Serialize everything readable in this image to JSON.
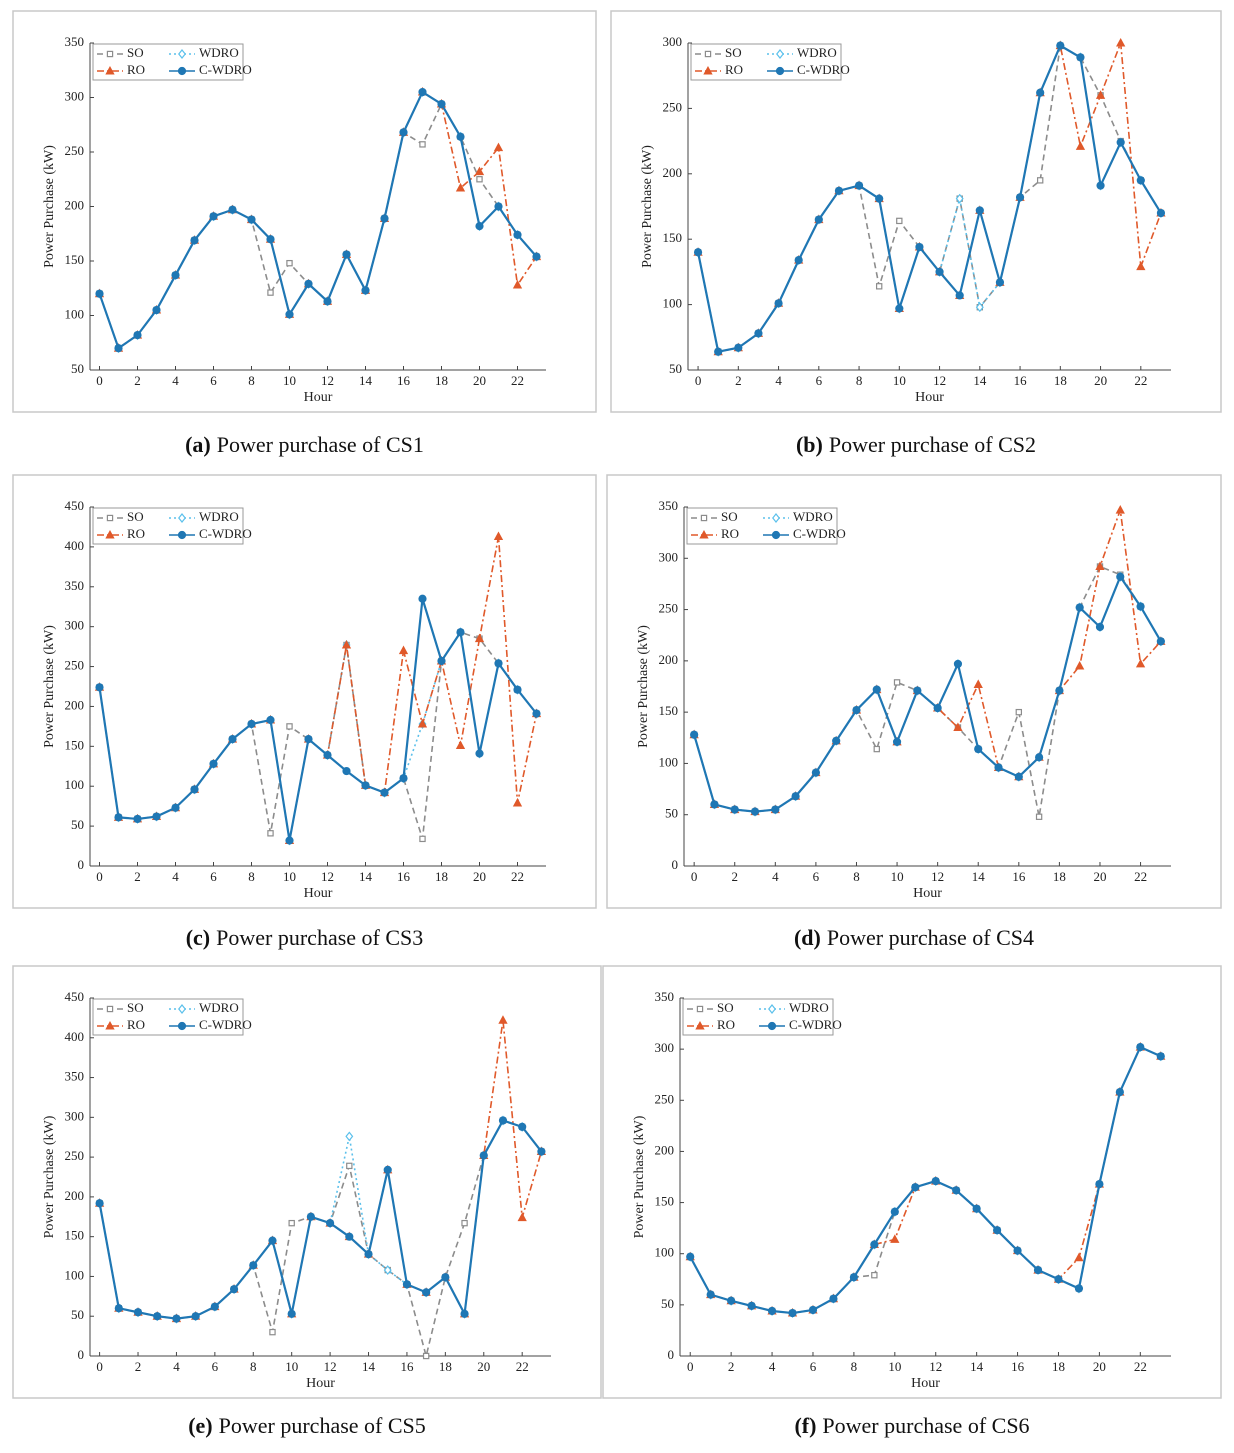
{
  "chart_data": [
    {
      "type": "line",
      "caption_label": "(a)",
      "caption": "Power purchase of CS1",
      "x_label": "Hour",
      "y_label": "Power Purchase (kW)",
      "x": [
        0,
        1,
        2,
        3,
        4,
        5,
        6,
        7,
        8,
        9,
        10,
        11,
        12,
        13,
        14,
        15,
        16,
        17,
        18,
        19,
        20,
        21,
        22,
        23
      ],
      "xlim": [
        -0.5,
        23.5
      ],
      "xticks": [
        0,
        2,
        4,
        6,
        8,
        10,
        12,
        14,
        16,
        18,
        20,
        22
      ],
      "ylim": [
        50,
        350
      ],
      "yticks": [
        50,
        100,
        150,
        200,
        250,
        300,
        350
      ],
      "series": [
        {
          "name": "SO",
          "color": "#8c8c8c",
          "line_style": "dashed",
          "marker": "square",
          "values": [
            120,
            70,
            82,
            105,
            137,
            169,
            191,
            197,
            188,
            121,
            148,
            129,
            113,
            156,
            123,
            189,
            268,
            257,
            294,
            264,
            225,
            200,
            174,
            154
          ]
        },
        {
          "name": "WDRO",
          "color": "#5bc0eb",
          "line_style": "dotted",
          "marker": "diamond",
          "values": [
            120,
            70,
            82,
            105,
            137,
            169,
            191,
            197,
            188,
            170,
            101,
            129,
            113,
            156,
            123,
            189,
            268,
            305,
            294,
            264,
            182,
            200,
            174,
            154
          ]
        },
        {
          "name": "RO",
          "color": "#e0592a",
          "line_style": "dashdot",
          "marker": "triangle",
          "values": [
            120,
            70,
            82,
            105,
            137,
            169,
            191,
            197,
            188,
            170,
            101,
            129,
            113,
            156,
            123,
            189,
            268,
            305,
            294,
            217,
            232,
            254,
            128,
            154
          ]
        },
        {
          "name": "C-WDRO",
          "color": "#1f77b4",
          "line_style": "solid",
          "marker": "circle",
          "values": [
            120,
            70,
            82,
            105,
            137,
            169,
            191,
            197,
            188,
            170,
            101,
            129,
            113,
            156,
            123,
            189,
            268,
            305,
            294,
            264,
            182,
            200,
            174,
            154
          ]
        }
      ]
    },
    {
      "type": "line",
      "caption_label": "(b)",
      "caption": "Power purchase of CS2",
      "x_label": "Hour",
      "y_label": "Power Purchase (kW)",
      "x": [
        0,
        1,
        2,
        3,
        4,
        5,
        6,
        7,
        8,
        9,
        10,
        11,
        12,
        13,
        14,
        15,
        16,
        17,
        18,
        19,
        20,
        21,
        22,
        23
      ],
      "xlim": [
        -0.5,
        23.5
      ],
      "xticks": [
        0,
        2,
        4,
        6,
        8,
        10,
        12,
        14,
        16,
        18,
        20,
        22
      ],
      "ylim": [
        50,
        300
      ],
      "yticks": [
        50,
        100,
        150,
        200,
        250,
        300
      ],
      "series": [
        {
          "name": "SO",
          "color": "#8c8c8c",
          "line_style": "dashed",
          "marker": "square",
          "values": [
            140,
            64,
            67,
            78,
            101,
            134,
            165,
            187,
            191,
            114,
            164,
            144,
            125,
            181,
            98,
            117,
            182,
            195,
            298,
            289,
            260,
            225,
            195,
            170
          ]
        },
        {
          "name": "WDRO",
          "color": "#5bc0eb",
          "line_style": "dotted",
          "marker": "diamond",
          "values": [
            140,
            64,
            67,
            78,
            101,
            134,
            165,
            187,
            191,
            181,
            97,
            144,
            125,
            181,
            98,
            117,
            182,
            262,
            298,
            289,
            191,
            224,
            195,
            170
          ]
        },
        {
          "name": "RO",
          "color": "#e0592a",
          "line_style": "dashdot",
          "marker": "triangle",
          "values": [
            140,
            64,
            67,
            78,
            101,
            134,
            165,
            187,
            191,
            181,
            97,
            144,
            125,
            107,
            172,
            117,
            182,
            262,
            298,
            221,
            260,
            300,
            129,
            170
          ]
        },
        {
          "name": "C-WDRO",
          "color": "#1f77b4",
          "line_style": "solid",
          "marker": "circle",
          "values": [
            140,
            64,
            67,
            78,
            101,
            134,
            165,
            187,
            191,
            181,
            97,
            144,
            125,
            107,
            172,
            117,
            182,
            262,
            298,
            289,
            191,
            224,
            195,
            170
          ]
        }
      ]
    },
    {
      "type": "line",
      "caption_label": "(c)",
      "caption": "Power purchase of CS3",
      "x_label": "Hour",
      "y_label": "Power Purchase (kW)",
      "x": [
        0,
        1,
        2,
        3,
        4,
        5,
        6,
        7,
        8,
        9,
        10,
        11,
        12,
        13,
        14,
        15,
        16,
        17,
        18,
        19,
        20,
        21,
        22,
        23
      ],
      "xlim": [
        -0.5,
        23.5
      ],
      "xticks": [
        0,
        2,
        4,
        6,
        8,
        10,
        12,
        14,
        16,
        18,
        20,
        22
      ],
      "ylim": [
        0,
        450
      ],
      "yticks": [
        0,
        50,
        100,
        150,
        200,
        250,
        300,
        350,
        400,
        450
      ],
      "series": [
        {
          "name": "SO",
          "color": "#8c8c8c",
          "line_style": "dashed",
          "marker": "square",
          "values": [
            224,
            61,
            59,
            62,
            73,
            96,
            128,
            159,
            178,
            41,
            175,
            159,
            139,
            277,
            101,
            92,
            110,
            34,
            257,
            293,
            285,
            254,
            221,
            191
          ]
        },
        {
          "name": "WDRO",
          "color": "#5bc0eb",
          "line_style": "dotted",
          "marker": "diamond",
          "values": [
            224,
            61,
            59,
            62,
            73,
            96,
            128,
            159,
            178,
            183,
            32,
            159,
            139,
            277,
            101,
            92,
            110,
            178,
            257,
            293,
            141,
            254,
            221,
            191
          ]
        },
        {
          "name": "RO",
          "color": "#e0592a",
          "line_style": "dashdot",
          "marker": "triangle",
          "values": [
            224,
            61,
            59,
            62,
            73,
            96,
            128,
            159,
            178,
            183,
            32,
            159,
            139,
            277,
            101,
            92,
            270,
            178,
            257,
            151,
            285,
            413,
            79,
            191
          ]
        },
        {
          "name": "C-WDRO",
          "color": "#1f77b4",
          "line_style": "solid",
          "marker": "circle",
          "values": [
            224,
            61,
            59,
            62,
            73,
            96,
            128,
            159,
            178,
            183,
            32,
            159,
            139,
            119,
            101,
            92,
            110,
            335,
            257,
            293,
            141,
            254,
            221,
            191
          ]
        }
      ]
    },
    {
      "type": "line",
      "caption_label": "(d)",
      "caption": "Power purchase of CS4",
      "x_label": "Hour",
      "y_label": "Power Purchase (kW)",
      "x": [
        0,
        1,
        2,
        3,
        4,
        5,
        6,
        7,
        8,
        9,
        10,
        11,
        12,
        13,
        14,
        15,
        16,
        17,
        18,
        19,
        20,
        21,
        22,
        23
      ],
      "xlim": [
        -0.5,
        23.5
      ],
      "xticks": [
        0,
        2,
        4,
        6,
        8,
        10,
        12,
        14,
        16,
        18,
        20,
        22
      ],
      "ylim": [
        0,
        350
      ],
      "yticks": [
        0,
        50,
        100,
        150,
        200,
        250,
        300,
        350
      ],
      "series": [
        {
          "name": "SO",
          "color": "#8c8c8c",
          "line_style": "dashed",
          "marker": "square",
          "values": [
            128,
            60,
            55,
            53,
            55,
            68,
            91,
            122,
            152,
            114,
            179,
            171,
            154,
            135,
            114,
            96,
            150,
            48,
            171,
            252,
            292,
            284,
            253,
            219
          ]
        },
        {
          "name": "WDRO",
          "color": "#5bc0eb",
          "line_style": "dotted",
          "marker": "diamond",
          "values": [
            128,
            60,
            55,
            53,
            55,
            68,
            91,
            122,
            152,
            172,
            121,
            171,
            154,
            197,
            114,
            96,
            87,
            106,
            171,
            252,
            233,
            282,
            253,
            219
          ]
        },
        {
          "name": "RO",
          "color": "#e0592a",
          "line_style": "dashdot",
          "marker": "triangle",
          "values": [
            128,
            60,
            55,
            53,
            55,
            68,
            91,
            122,
            152,
            172,
            121,
            171,
            154,
            135,
            177,
            96,
            87,
            106,
            171,
            195,
            292,
            347,
            197,
            219
          ]
        },
        {
          "name": "C-WDRO",
          "color": "#1f77b4",
          "line_style": "solid",
          "marker": "circle",
          "values": [
            128,
            60,
            55,
            53,
            55,
            68,
            91,
            122,
            152,
            172,
            121,
            171,
            154,
            197,
            114,
            96,
            87,
            106,
            171,
            252,
            233,
            282,
            253,
            219
          ]
        }
      ]
    },
    {
      "type": "line",
      "caption_label": "(e)",
      "caption": "Power purchase of CS5",
      "x_label": "Hour",
      "y_label": "Power Purchase (kW)",
      "x": [
        0,
        1,
        2,
        3,
        4,
        5,
        6,
        7,
        8,
        9,
        10,
        11,
        12,
        13,
        14,
        15,
        16,
        17,
        18,
        19,
        20,
        21,
        22,
        23
      ],
      "xlim": [
        -0.5,
        23.5
      ],
      "xticks": [
        0,
        2,
        4,
        6,
        8,
        10,
        12,
        14,
        16,
        18,
        20,
        22
      ],
      "ylim": [
        0,
        450
      ],
      "yticks": [
        0,
        50,
        100,
        150,
        200,
        250,
        300,
        350,
        400,
        450
      ],
      "series": [
        {
          "name": "SO",
          "color": "#8c8c8c",
          "line_style": "dashed",
          "marker": "square",
          "values": [
            192,
            60,
            55,
            50,
            47,
            50,
            62,
            84,
            114,
            30,
            167,
            175,
            167,
            239,
            128,
            108,
            90,
            0,
            99,
            167,
            252,
            296,
            288,
            257
          ]
        },
        {
          "name": "WDRO",
          "color": "#5bc0eb",
          "line_style": "dotted",
          "marker": "diamond",
          "values": [
            192,
            60,
            55,
            50,
            47,
            50,
            62,
            84,
            114,
            145,
            53,
            175,
            167,
            276,
            128,
            108,
            90,
            80,
            99,
            53,
            252,
            296,
            288,
            257
          ]
        },
        {
          "name": "RO",
          "color": "#e0592a",
          "line_style": "dashdot",
          "marker": "triangle",
          "values": [
            192,
            60,
            55,
            50,
            47,
            50,
            62,
            84,
            114,
            145,
            53,
            175,
            167,
            150,
            128,
            234,
            90,
            80,
            99,
            53,
            252,
            422,
            174,
            257
          ]
        },
        {
          "name": "C-WDRO",
          "color": "#1f77b4",
          "line_style": "solid",
          "marker": "circle",
          "values": [
            192,
            60,
            55,
            50,
            47,
            50,
            62,
            84,
            114,
            145,
            53,
            175,
            167,
            150,
            128,
            234,
            90,
            80,
            99,
            53,
            252,
            296,
            288,
            257
          ]
        }
      ]
    },
    {
      "type": "line",
      "caption_label": "(f)",
      "caption": "Power purchase of CS6",
      "x_label": "Hour",
      "y_label": "Power Purchase (kW)",
      "x": [
        0,
        1,
        2,
        3,
        4,
        5,
        6,
        7,
        8,
        9,
        10,
        11,
        12,
        13,
        14,
        15,
        16,
        17,
        18,
        19,
        20,
        21,
        22,
        23
      ],
      "xlim": [
        -0.5,
        23.5
      ],
      "xticks": [
        0,
        2,
        4,
        6,
        8,
        10,
        12,
        14,
        16,
        18,
        20,
        22
      ],
      "ylim": [
        0,
        350
      ],
      "yticks": [
        0,
        50,
        100,
        150,
        200,
        250,
        300,
        350
      ],
      "series": [
        {
          "name": "SO",
          "color": "#8c8c8c",
          "line_style": "dashed",
          "marker": "square",
          "values": [
            97,
            60,
            54,
            49,
            44,
            42,
            45,
            56,
            77,
            79,
            141,
            165,
            171,
            162,
            144,
            123,
            103,
            84,
            75,
            66,
            168,
            258,
            302,
            293
          ]
        },
        {
          "name": "WDRO",
          "color": "#5bc0eb",
          "line_style": "dotted",
          "marker": "diamond",
          "values": [
            97,
            60,
            54,
            49,
            44,
            42,
            45,
            56,
            77,
            109,
            141,
            165,
            171,
            162,
            144,
            123,
            103,
            84,
            75,
            66,
            168,
            258,
            302,
            293
          ]
        },
        {
          "name": "RO",
          "color": "#e0592a",
          "line_style": "dashdot",
          "marker": "triangle",
          "values": [
            97,
            60,
            54,
            49,
            44,
            42,
            45,
            56,
            77,
            109,
            114,
            165,
            171,
            162,
            144,
            123,
            103,
            84,
            75,
            96,
            168,
            258,
            302,
            293
          ]
        },
        {
          "name": "C-WDRO",
          "color": "#1f77b4",
          "line_style": "solid",
          "marker": "circle",
          "values": [
            97,
            60,
            54,
            49,
            44,
            42,
            45,
            56,
            77,
            109,
            141,
            165,
            171,
            162,
            144,
            123,
            103,
            84,
            75,
            66,
            168,
            258,
            302,
            293
          ]
        }
      ]
    }
  ]
}
